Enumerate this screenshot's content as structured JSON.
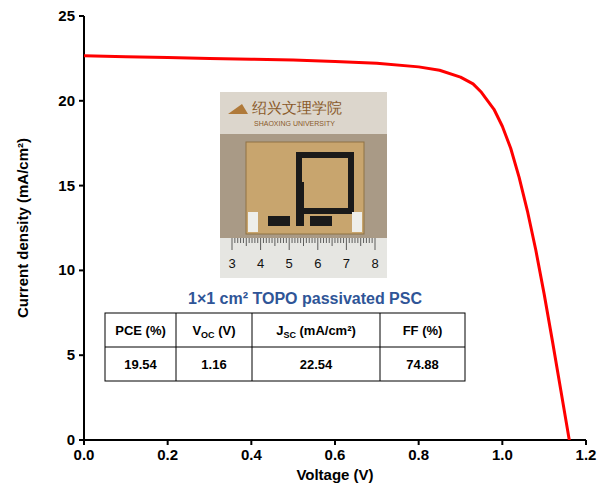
{
  "chart_data": {
    "type": "line",
    "x_label": "Voltage (V)",
    "y_label": "Current density (mA/cm²)",
    "x": [
      0,
      0.1,
      0.2,
      0.3,
      0.4,
      0.5,
      0.6,
      0.7,
      0.8,
      0.85,
      0.9,
      0.93,
      0.95,
      0.98,
      1.0,
      1.02,
      1.04,
      1.06,
      1.08,
      1.1,
      1.12,
      1.14,
      1.16
    ],
    "values": [
      22.65,
      22.6,
      22.55,
      22.5,
      22.45,
      22.4,
      22.32,
      22.22,
      22.0,
      21.8,
      21.4,
      21.0,
      20.5,
      19.5,
      18.5,
      17.2,
      15.5,
      13.5,
      11.2,
      8.6,
      5.8,
      2.9,
      0
    ],
    "color": "#ff0000",
    "xlim": [
      0,
      1.2
    ],
    "ylim": [
      0,
      25
    ],
    "xticks": [
      {
        "value": 0,
        "label": "0.0"
      },
      0.2,
      0.4,
      0.6,
      0.8,
      {
        "value": 1,
        "label": "1.0"
      },
      1.2
    ],
    "yticks": [
      0,
      5,
      10,
      15,
      20,
      25
    ],
    "grid": false,
    "inset": {
      "photo": {
        "logo_cn": "绍兴文理学院",
        "logo_en": "SHAOXING UNIVERSITY",
        "ruler_labels": [
          3,
          4,
          5,
          6,
          7,
          8
        ]
      },
      "caption": "1×1 cm² TOPO passivated PSC",
      "table": {
        "headers": [
          {
            "main": "PCE (%)"
          },
          {
            "main": "V",
            "sub": "OC",
            "unit": " (V)"
          },
          {
            "main": "J",
            "sub": "SC",
            "unit": " (mA/cm²)"
          },
          {
            "main": "FF (%)"
          }
        ],
        "rows": [
          [
            19.54,
            1.16,
            22.54,
            74.88
          ]
        ]
      }
    }
  }
}
